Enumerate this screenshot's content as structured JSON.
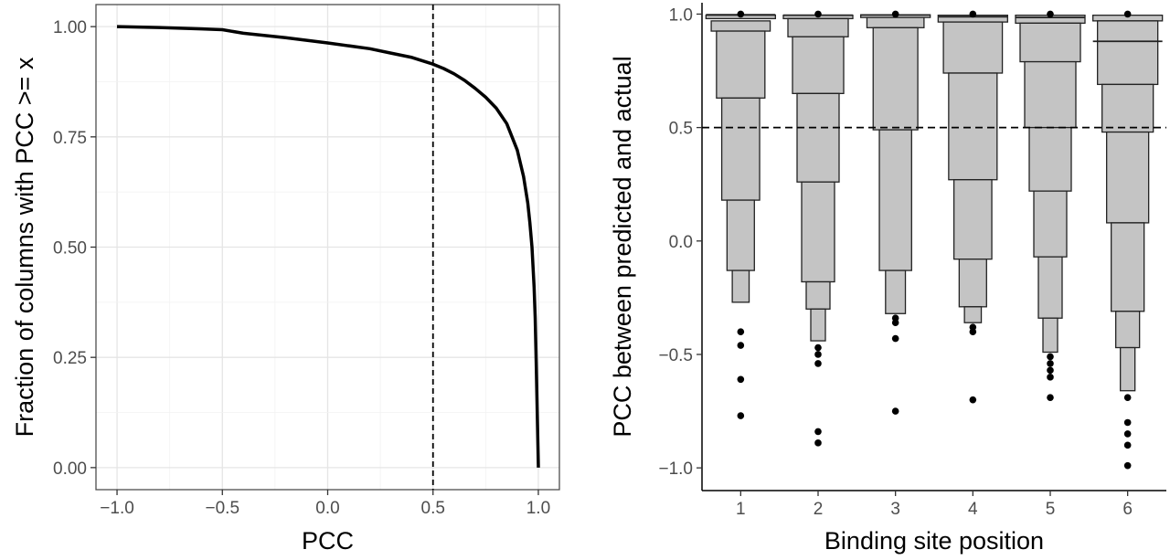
{
  "chart_data": [
    {
      "type": "line",
      "title": "",
      "xlabel": "PCC",
      "ylabel": "Fraction of columns with PCC >= x",
      "xlim": [
        -1.1,
        1.1
      ],
      "ylim": [
        -0.05,
        1.05
      ],
      "x_ticks": [
        -1.0,
        -0.5,
        0.0,
        0.5,
        1.0
      ],
      "x_tick_labels": [
        "−1.0",
        "−0.5",
        "0.0",
        "0.5",
        "1.0"
      ],
      "y_ticks": [
        0.0,
        0.25,
        0.5,
        0.75,
        1.0
      ],
      "y_tick_labels": [
        "0.00",
        "0.25",
        "0.50",
        "0.75",
        "1.00"
      ],
      "grid": true,
      "reference_lines": [
        {
          "orientation": "vertical",
          "x": 0.5,
          "style": "dashed"
        }
      ],
      "series": [
        {
          "color": "#000000",
          "x": [
            -1.0,
            -0.8,
            -0.6,
            -0.5,
            -0.4,
            -0.2,
            0.0,
            0.2,
            0.3,
            0.4,
            0.5,
            0.55,
            0.6,
            0.65,
            0.7,
            0.75,
            0.8,
            0.85,
            0.9,
            0.93,
            0.95,
            0.96,
            0.97,
            0.98,
            0.985,
            0.99,
            0.995,
            1.0
          ],
          "y": [
            1.0,
            0.998,
            0.995,
            0.993,
            0.985,
            0.975,
            0.963,
            0.95,
            0.94,
            0.93,
            0.915,
            0.905,
            0.893,
            0.878,
            0.86,
            0.84,
            0.815,
            0.78,
            0.72,
            0.66,
            0.6,
            0.555,
            0.5,
            0.41,
            0.34,
            0.24,
            0.12,
            0.0
          ]
        }
      ]
    },
    {
      "type": "letter-value boxplot",
      "title": "",
      "xlabel": "Binding site position",
      "ylabel": "PCC between predicted and actual",
      "ylim": [
        -1.1,
        1.05
      ],
      "categories": [
        "1",
        "2",
        "3",
        "4",
        "5",
        "6"
      ],
      "y_ticks": [
        -1.0,
        -0.5,
        0.0,
        0.5,
        1.0
      ],
      "y_tick_labels": [
        "−1.0",
        "−0.5",
        "0.0",
        "0.5",
        "1.0"
      ],
      "grid": false,
      "box_color": "#c4c4c4",
      "reference_lines": [
        {
          "orientation": "horizontal",
          "y": 0.5,
          "style": "dashed"
        }
      ],
      "groups": [
        {
          "category": "1",
          "median": 0.997,
          "boxes": [
            [
              0.98,
              0.995
            ],
            [
              0.925,
              0.97
            ],
            [
              0.63,
              0.925
            ],
            [
              0.18,
              0.63
            ],
            [
              -0.13,
              0.18
            ],
            [
              -0.27,
              -0.13
            ]
          ],
          "outliers": [
            -0.4,
            -0.46,
            -0.61,
            -0.77,
            1.0
          ]
        },
        {
          "category": "2",
          "median": 0.995,
          "boxes": [
            [
              0.98,
              0.995
            ],
            [
              0.9,
              0.98
            ],
            [
              0.65,
              0.9
            ],
            [
              0.26,
              0.65
            ],
            [
              -0.18,
              0.26
            ],
            [
              -0.3,
              -0.18
            ],
            [
              -0.44,
              -0.3
            ]
          ],
          "outliers": [
            -0.47,
            -0.5,
            -0.54,
            -0.84,
            -0.89,
            1.0
          ]
        },
        {
          "category": "3",
          "median": 0.996,
          "boxes": [
            [
              0.985,
              0.997
            ],
            [
              0.94,
              0.985
            ],
            [
              0.49,
              0.94
            ],
            [
              -0.13,
              0.49
            ],
            [
              -0.32,
              -0.13
            ]
          ],
          "outliers": [
            -0.34,
            -0.36,
            -0.43,
            -0.75,
            1.0
          ]
        },
        {
          "category": "4",
          "median": 0.988,
          "boxes": [
            [
              0.965,
              0.995
            ],
            [
              0.74,
              0.965
            ],
            [
              0.27,
              0.74
            ],
            [
              -0.08,
              0.27
            ],
            [
              -0.29,
              -0.08
            ],
            [
              -0.36,
              -0.29
            ]
          ],
          "outliers": [
            -0.38,
            -0.4,
            -0.7,
            1.0
          ]
        },
        {
          "category": "5",
          "median": 0.985,
          "boxes": [
            [
              0.96,
              0.995
            ],
            [
              0.79,
              0.96
            ],
            [
              0.5,
              0.79
            ],
            [
              0.22,
              0.5
            ],
            [
              -0.07,
              0.22
            ],
            [
              -0.34,
              -0.07
            ],
            [
              -0.49,
              -0.34
            ]
          ],
          "outliers": [
            -0.51,
            -0.54,
            -0.57,
            -0.6,
            -0.69,
            1.0
          ]
        },
        {
          "category": "6",
          "median": 0.88,
          "boxes": [
            [
              0.97,
              0.995
            ],
            [
              0.69,
              0.97
            ],
            [
              0.48,
              0.69
            ],
            [
              0.08,
              0.48
            ],
            [
              -0.31,
              0.08
            ],
            [
              -0.47,
              -0.31
            ],
            [
              -0.66,
              -0.47
            ]
          ],
          "outliers": [
            -0.69,
            -0.8,
            -0.85,
            -0.9,
            -0.99,
            1.0
          ]
        }
      ]
    }
  ]
}
